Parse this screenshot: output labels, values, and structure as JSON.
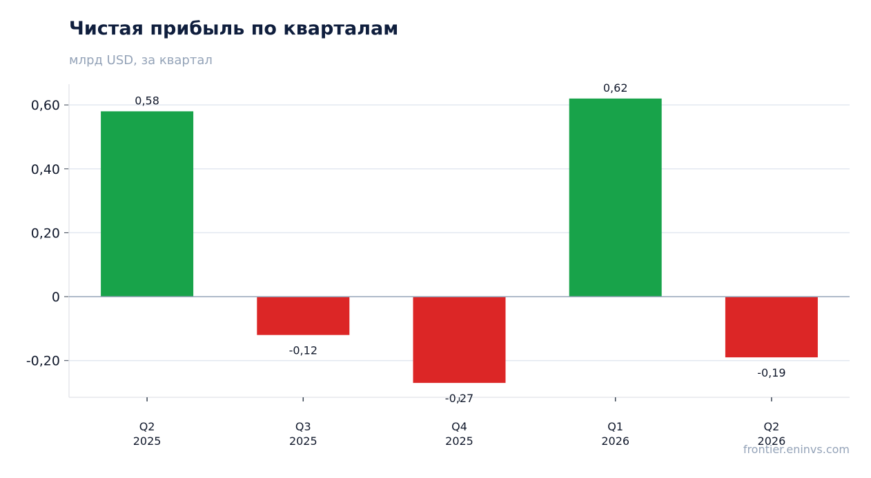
{
  "header": {
    "title": "Чистая прибыль по кварталам",
    "subtitle": "млрд USD, за квартал"
  },
  "footer": {
    "source": "frontier.eninvs.com"
  },
  "colors": {
    "positive": "#18a34a",
    "negative": "#dc2626",
    "grid": "#e2e8f0",
    "zero_line": "#94a3b8",
    "axis": "#e5e7eb"
  },
  "chart_data": {
    "type": "bar",
    "categories": [
      [
        "Q2",
        "2025"
      ],
      [
        "Q3",
        "2025"
      ],
      [
        "Q4",
        "2025"
      ],
      [
        "Q1",
        "2026"
      ],
      [
        "Q2",
        "2026"
      ]
    ],
    "values": [
      0.58,
      -0.12,
      -0.27,
      0.62,
      -0.19
    ],
    "value_labels": [
      "0,58",
      "-0,12",
      "-0,27",
      "0,62",
      "-0,19"
    ],
    "yticks": [
      -0.2,
      0,
      0.2,
      0.4,
      0.6
    ],
    "ytick_labels": [
      "-0,20",
      "0",
      "0,20",
      "0,40",
      "0,60"
    ],
    "ylim": [
      -0.315,
      0.665
    ],
    "grid": true,
    "legend": "none",
    "xlabel": "",
    "ylabel": ""
  }
}
